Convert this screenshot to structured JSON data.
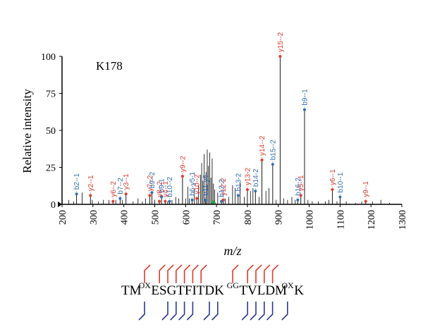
{
  "chart_data": {
    "type": "bar",
    "panel_label": "K178",
    "xlabel": "m/z",
    "ylabel": "Relative intensity",
    "xlim": [
      200,
      1300
    ],
    "ylim": [
      0,
      100
    ],
    "x_ticks": [
      200,
      300,
      400,
      500,
      600,
      700,
      800,
      900,
      1000,
      1100,
      1200,
      1300
    ],
    "y_ticks": [
      0,
      25,
      50,
      75,
      100
    ],
    "grid": false,
    "legend": "none",
    "colors": {
      "y_ion": "#e03a2c",
      "b_ion": "#2f6fb4",
      "noise": "#000000",
      "precursor": "#2a9d4a"
    },
    "peptide": {
      "segments": [
        {
          "text": "TM",
          "sup": false
        },
        {
          "text": "OX",
          "sup": true
        },
        {
          "text": "ESGTFITDK",
          "sup": false
        },
        {
          "text": "GG",
          "sup": true
        },
        {
          "text": "TVLDM",
          "sup": false
        },
        {
          "text": "OX",
          "sup": true
        },
        {
          "text": "K",
          "sup": false
        }
      ]
    },
    "annotated_peaks": [
      {
        "label": "b2--1",
        "mz": 247,
        "intensity": 7,
        "ion": "b"
      },
      {
        "label": "y2--1",
        "mz": 292,
        "intensity": 6,
        "ion": "y"
      },
      {
        "label": "y6--2",
        "mz": 365,
        "intensity": 2,
        "ion": "y"
      },
      {
        "label": "b7--2",
        "mz": 388,
        "intensity": 4,
        "ion": "b"
      },
      {
        "label": "y3--1",
        "mz": 407,
        "intensity": 7,
        "ion": "y"
      },
      {
        "label": "y7--2",
        "mz": 484,
        "intensity": 6,
        "ion": "y"
      },
      {
        "label": "b9--2",
        "mz": 491,
        "intensity": 8,
        "ion": "b"
      },
      {
        "label": "y8--2",
        "mz": 515,
        "intensity": 2,
        "ion": "y"
      },
      {
        "label": "b9-1",
        "mz": 522,
        "intensity": 5,
        "ion": "b"
      },
      {
        "label": "y4--1",
        "mz": 534,
        "intensity": 2,
        "ion": "y"
      },
      {
        "label": "b10--2",
        "mz": 548,
        "intensity": 2,
        "ion": "b"
      },
      {
        "label": "y9--2",
        "mz": 590,
        "intensity": 19,
        "ion": "y"
      },
      {
        "label": "b6-y5-1",
        "mz": 621,
        "intensity": 3,
        "ion": "b"
      },
      {
        "label": "y10--2",
        "mz": 636,
        "intensity": 4,
        "ion": "y"
      },
      {
        "label": "b11-y5",
        "mz": 664,
        "intensity": 3,
        "ion": "b"
      },
      {
        "label": "y12-2",
        "mz": 722,
        "intensity": 3,
        "ion": "y"
      },
      {
        "label": "b12-2",
        "mz": 716,
        "intensity": 2,
        "ion": "b"
      },
      {
        "label": "b13-2",
        "mz": 770,
        "intensity": 6,
        "ion": "b"
      },
      {
        "label": "y13-2",
        "mz": 800,
        "intensity": 10,
        "ion": "y"
      },
      {
        "label": "b14-2",
        "mz": 826,
        "intensity": 9,
        "ion": "b"
      },
      {
        "label": "y14--2",
        "mz": 847,
        "intensity": 30,
        "ion": "y"
      },
      {
        "label": "b15--2",
        "mz": 882,
        "intensity": 27,
        "ion": "b"
      },
      {
        "label": "y15--2",
        "mz": 906,
        "intensity": 100,
        "ion": "y"
      },
      {
        "label": "b16-2",
        "mz": 963,
        "intensity": 3,
        "ion": "b"
      },
      {
        "label": "y5--1",
        "mz": 973,
        "intensity": 6,
        "ion": "y"
      },
      {
        "label": "b9--1",
        "mz": 985,
        "intensity": 64,
        "ion": "b"
      },
      {
        "label": "y6--1",
        "mz": 1075,
        "intensity": 10,
        "ion": "y"
      },
      {
        "label": "b10--1",
        "mz": 1100,
        "intensity": 5,
        "ion": "b"
      },
      {
        "label": "y9--1",
        "mz": 1183,
        "intensity": 2,
        "ion": "y"
      }
    ],
    "unlabeled_peaks": [
      {
        "mz": 222,
        "intensity": 3
      },
      {
        "mz": 238,
        "intensity": 2
      },
      {
        "mz": 265,
        "intensity": 8
      },
      {
        "mz": 298,
        "intensity": 3
      },
      {
        "mz": 318,
        "intensity": 2
      },
      {
        "mz": 334,
        "intensity": 3
      },
      {
        "mz": 352,
        "intensity": 3
      },
      {
        "mz": 374,
        "intensity": 3
      },
      {
        "mz": 395,
        "intensity": 3
      },
      {
        "mz": 430,
        "intensity": 2
      },
      {
        "mz": 446,
        "intensity": 4
      },
      {
        "mz": 460,
        "intensity": 2
      },
      {
        "mz": 470,
        "intensity": 4
      },
      {
        "mz": 500,
        "intensity": 3
      },
      {
        "mz": 542,
        "intensity": 2
      },
      {
        "mz": 556,
        "intensity": 3
      },
      {
        "mz": 568,
        "intensity": 5
      },
      {
        "mz": 578,
        "intensity": 4
      },
      {
        "mz": 600,
        "intensity": 4
      },
      {
        "mz": 607,
        "intensity": 12
      },
      {
        "mz": 612,
        "intensity": 4
      },
      {
        "mz": 628,
        "intensity": 10
      },
      {
        "mz": 642,
        "intensity": 13
      },
      {
        "mz": 648,
        "intensity": 20
      },
      {
        "mz": 652,
        "intensity": 28
      },
      {
        "mz": 656,
        "intensity": 16
      },
      {
        "mz": 660,
        "intensity": 34
      },
      {
        "mz": 666,
        "intensity": 22
      },
      {
        "mz": 670,
        "intensity": 37
      },
      {
        "mz": 674,
        "intensity": 26
      },
      {
        "mz": 678,
        "intensity": 35
      },
      {
        "mz": 682,
        "intensity": 18
      },
      {
        "mz": 686,
        "intensity": 31
      },
      {
        "mz": 690,
        "intensity": 14
      },
      {
        "mz": 694,
        "intensity": 10
      },
      {
        "mz": 704,
        "intensity": 8
      },
      {
        "mz": 728,
        "intensity": 4
      },
      {
        "mz": 740,
        "intensity": 5
      },
      {
        "mz": 752,
        "intensity": 13
      },
      {
        "mz": 760,
        "intensity": 11
      },
      {
        "mz": 776,
        "intensity": 15
      },
      {
        "mz": 790,
        "intensity": 5
      },
      {
        "mz": 810,
        "intensity": 9
      },
      {
        "mz": 818,
        "intensity": 11
      },
      {
        "mz": 838,
        "intensity": 5
      },
      {
        "mz": 860,
        "intensity": 9
      },
      {
        "mz": 870,
        "intensity": 11
      },
      {
        "mz": 893,
        "intensity": 3
      },
      {
        "mz": 918,
        "intensity": 4
      },
      {
        "mz": 930,
        "intensity": 3
      },
      {
        "mz": 944,
        "intensity": 5
      },
      {
        "mz": 955,
        "intensity": 3
      },
      {
        "mz": 996,
        "intensity": 3
      },
      {
        "mz": 1010,
        "intensity": 2
      },
      {
        "mz": 1030,
        "intensity": 2
      },
      {
        "mz": 1052,
        "intensity": 2
      },
      {
        "mz": 1064,
        "intensity": 3
      },
      {
        "mz": 1090,
        "intensity": 2
      },
      {
        "mz": 1120,
        "intensity": 2
      },
      {
        "mz": 1150,
        "intensity": 1
      },
      {
        "mz": 1170,
        "intensity": 2
      },
      {
        "mz": 1205,
        "intensity": 2
      },
      {
        "mz": 1232,
        "intensity": 3
      },
      {
        "mz": 1260,
        "intensity": 1
      }
    ],
    "precursor_mz": 690
  }
}
